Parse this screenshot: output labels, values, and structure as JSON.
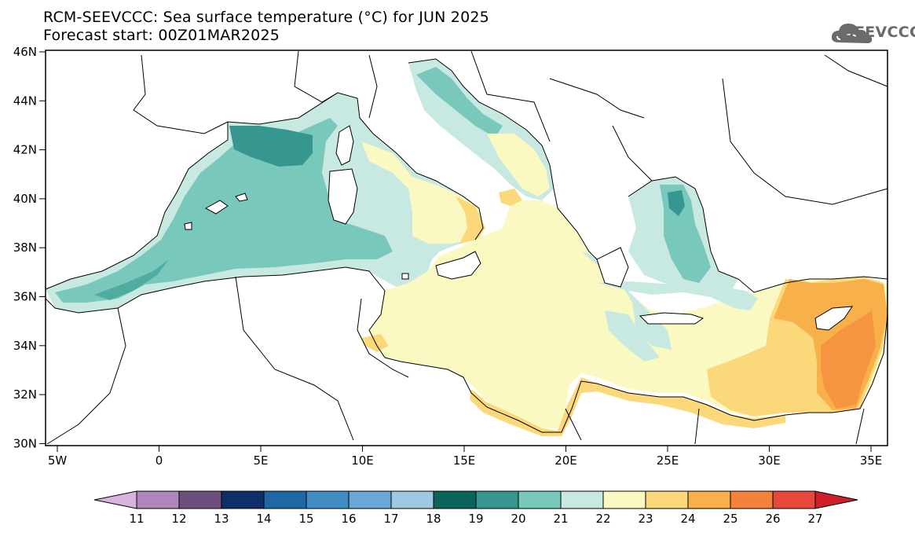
{
  "title": {
    "line1": "RCM-SEEVCCC: Sea surface temperature (°C) for JUN 2025",
    "line2": "Forecast start: 00Z01MAR2025"
  },
  "logo": {
    "text": "SEEVCCC",
    "icon": "cloud-icon"
  },
  "map": {
    "lon_ticks": [
      "5W",
      "0",
      "5E",
      "10E",
      "15E",
      "20E",
      "25E",
      "30E",
      "35E"
    ],
    "lat_ticks": [
      "46N",
      "44N",
      "42N",
      "40N",
      "38N",
      "36N",
      "34N",
      "32N",
      "30N"
    ],
    "land_color": "#ffffff",
    "border_color": "#000000"
  },
  "colorbar": {
    "labels": [
      "11",
      "12",
      "13",
      "14",
      "15",
      "16",
      "17",
      "18",
      "19",
      "20",
      "21",
      "22",
      "23",
      "24",
      "25",
      "26",
      "27"
    ],
    "colors": [
      "#d7b4dc",
      "#ae86bb",
      "#6d4f7b",
      "#0f2f6a",
      "#1f68a5",
      "#3f8dc3",
      "#6aa9d6",
      "#9fc8e2",
      "#0b6459",
      "#369790",
      "#78c8bb",
      "#c8e9e2",
      "#fbf9c2",
      "#fbd97b",
      "#f8b04a",
      "#f3833b",
      "#e8473c",
      "#d21e2b"
    ]
  }
}
